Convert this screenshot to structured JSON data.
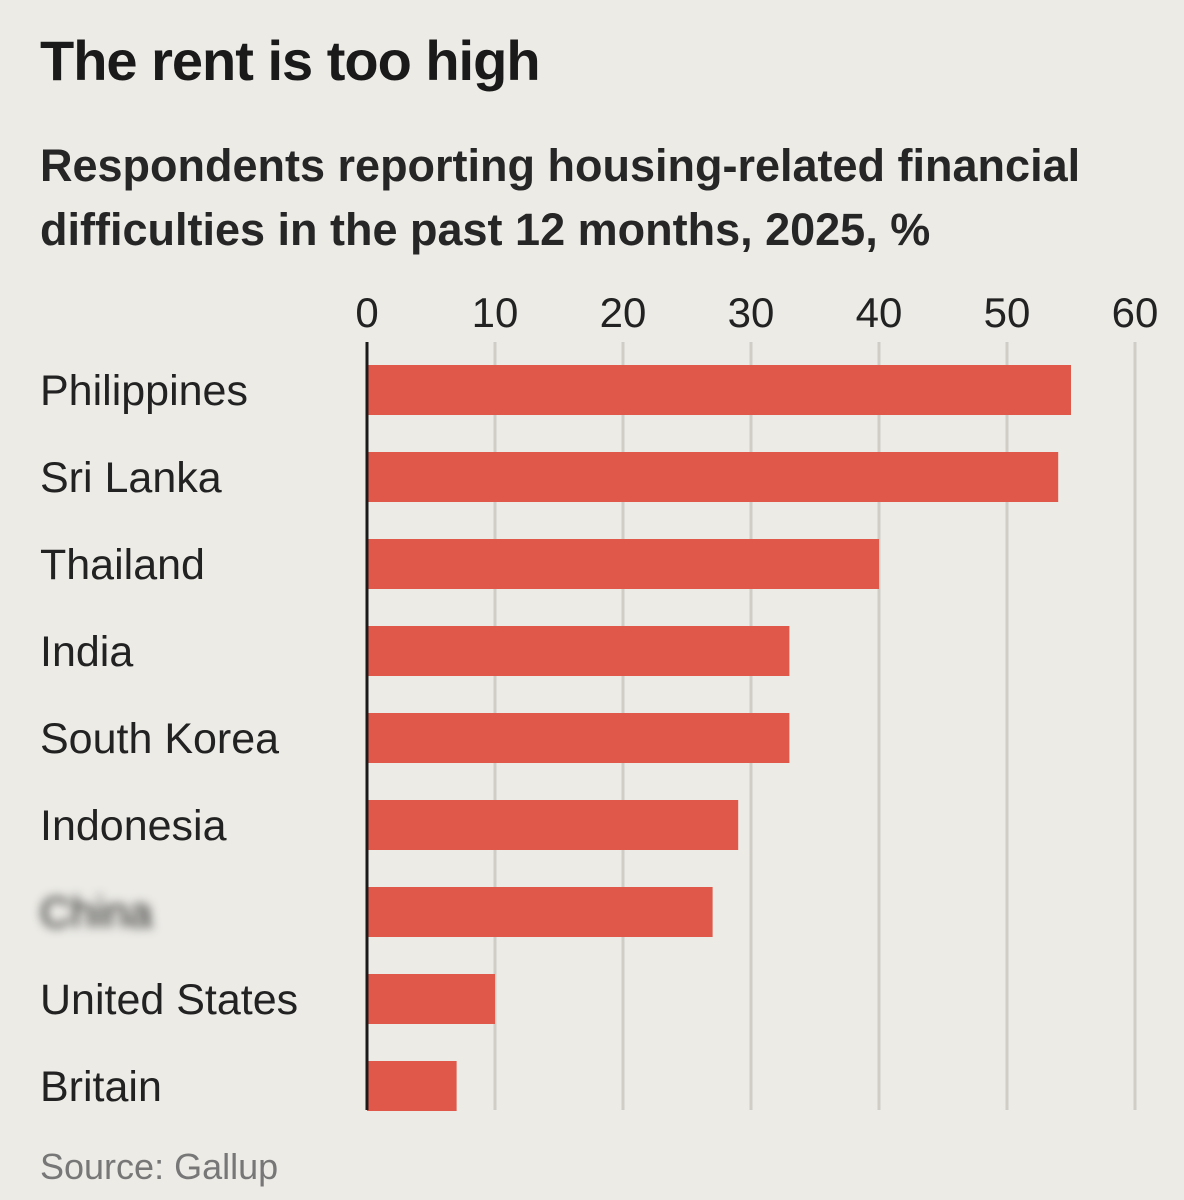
{
  "chart_data": {
    "type": "bar",
    "orientation": "horizontal",
    "title": "The rent is too high",
    "subtitle": "Respondents reporting housing-related financial difficulties in the past 12 months, 2025, %",
    "categories": [
      "Philippines",
      "Sri Lanka",
      "Thailand",
      "India",
      "South Korea",
      "Indonesia",
      "China",
      "United States",
      "Britain"
    ],
    "values": [
      55,
      54,
      40,
      33,
      33,
      29,
      27,
      10,
      7
    ],
    "xlim": [
      0,
      60
    ],
    "xticks": [
      "0",
      "10",
      "20",
      "30",
      "40",
      "50",
      "60"
    ],
    "xlabel": "",
    "ylabel": "",
    "grid": true,
    "axis_position": "top",
    "bar_color": "#e0584a",
    "source": "Source: Gallup"
  },
  "colors": {
    "background": "#ecebe6",
    "bar": "#e0584a",
    "gridline": "#cfcdc6",
    "axis": "#1a1a1a",
    "source_text": "#777777"
  }
}
